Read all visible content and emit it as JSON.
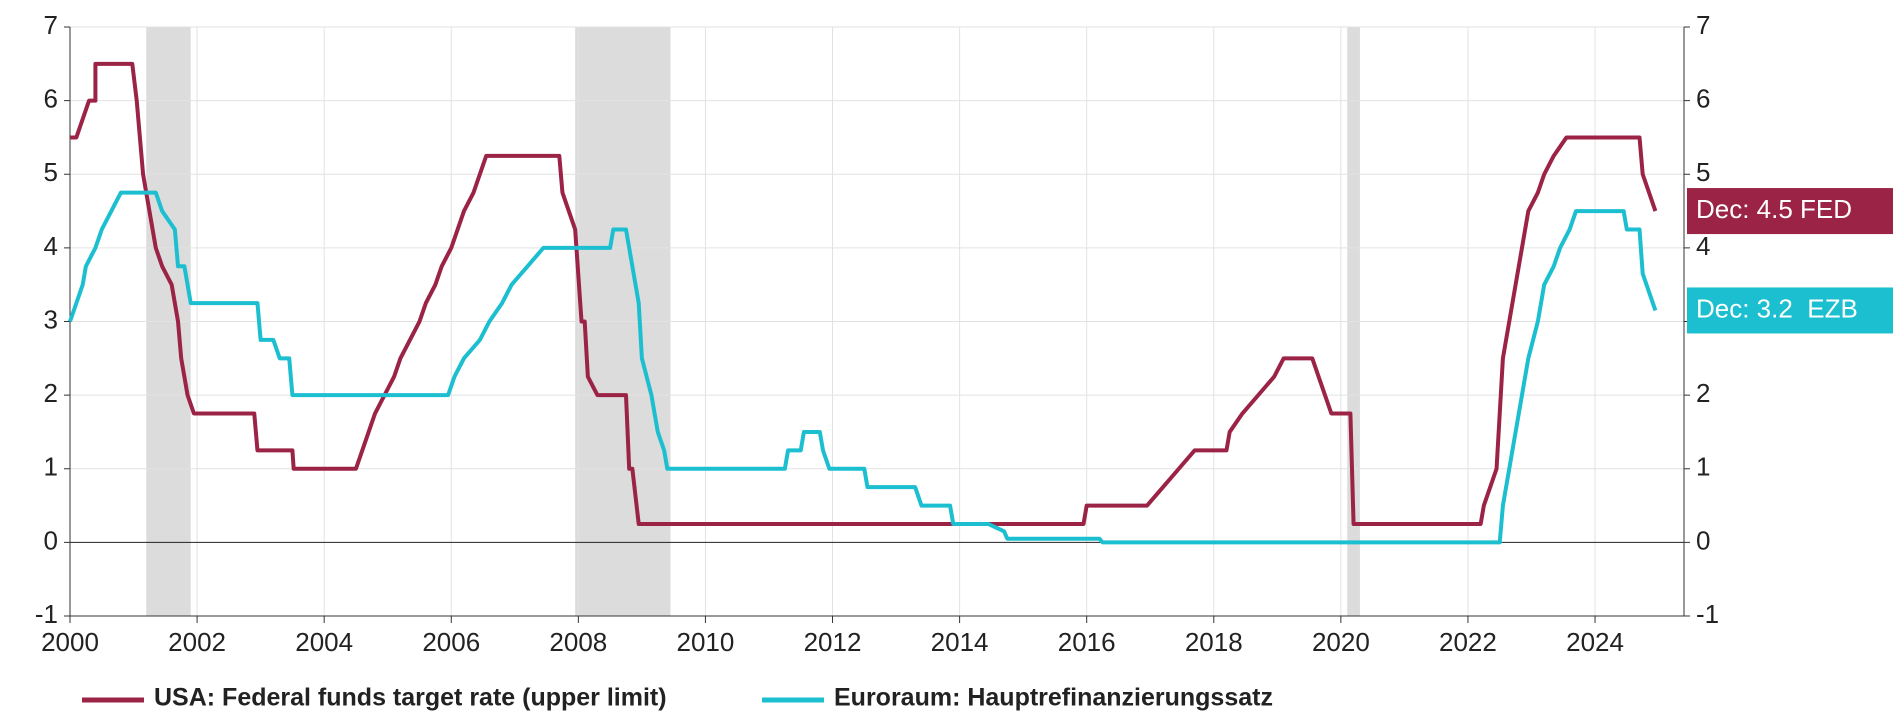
{
  "chart_data": {
    "type": "line",
    "xlim": [
      2000,
      2025.4
    ],
    "xticks": [
      2000,
      2002,
      2004,
      2006,
      2008,
      2010,
      2012,
      2014,
      2016,
      2018,
      2020,
      2022,
      2024
    ],
    "ylim": [
      -1,
      7
    ],
    "yticks": [
      -1,
      0,
      1,
      2,
      3,
      4,
      5,
      6,
      7
    ],
    "y2lim": [
      -1,
      7
    ],
    "y2ticks": [
      -1,
      0,
      1,
      2,
      3,
      4,
      5,
      6,
      7
    ],
    "grid": true,
    "shaded_periods": [
      [
        2001.2,
        2001.9
      ],
      [
        2007.95,
        2009.45
      ],
      [
        2020.1,
        2020.3
      ]
    ],
    "series": [
      {
        "name": "USA: Federal funds target rate (upper limit)",
        "color": "#9b2346",
        "end_label": "Dec: 4.5 FED",
        "x": [
          2000.0,
          2000.1,
          2000.2,
          2000.3,
          2000.4,
          2000.4,
          2000.98,
          2001.05,
          2001.1,
          2001.15,
          2001.25,
          2001.35,
          2001.45,
          2001.6,
          2001.7,
          2001.75,
          2001.85,
          2001.95,
          2002.9,
          2002.95,
          2003.5,
          2003.52,
          2004.5,
          2004.6,
          2004.7,
          2004.8,
          2004.95,
          2005.1,
          2005.2,
          2005.35,
          2005.5,
          2005.6,
          2005.75,
          2005.85,
          2006.0,
          2006.1,
          2006.2,
          2006.35,
          2006.45,
          2006.55,
          2007.7,
          2007.75,
          2007.85,
          2007.95,
          2008.05,
          2008.1,
          2008.15,
          2008.3,
          2008.75,
          2008.8,
          2008.85,
          2008.95,
          2015.95,
          2016.0,
          2016.95,
          2017.2,
          2017.45,
          2017.7,
          2018.2,
          2018.25,
          2018.45,
          2018.7,
          2018.95,
          2019.1,
          2019.55,
          2019.65,
          2019.75,
          2019.85,
          2020.15,
          2020.2,
          2022.2,
          2022.25,
          2022.45,
          2022.55,
          2022.7,
          2022.85,
          2022.95,
          2023.1,
          2023.2,
          2023.35,
          2023.55,
          2024.7,
          2024.75,
          2024.85,
          2024.95
        ],
        "values": [
          5.5,
          5.5,
          5.75,
          6.0,
          6.0,
          6.5,
          6.5,
          6.0,
          5.5,
          5.0,
          4.5,
          4.0,
          3.75,
          3.5,
          3.0,
          2.5,
          2.0,
          1.75,
          1.75,
          1.25,
          1.25,
          1.0,
          1.0,
          1.25,
          1.5,
          1.75,
          2.0,
          2.25,
          2.5,
          2.75,
          3.0,
          3.25,
          3.5,
          3.75,
          4.0,
          4.25,
          4.5,
          4.75,
          5.0,
          5.25,
          5.25,
          4.75,
          4.5,
          4.25,
          3.0,
          3.0,
          2.25,
          2.0,
          2.0,
          1.0,
          1.0,
          0.25,
          0.25,
          0.5,
          0.5,
          0.75,
          1.0,
          1.25,
          1.25,
          1.5,
          1.75,
          2.0,
          2.25,
          2.5,
          2.5,
          2.25,
          2.0,
          1.75,
          1.75,
          0.25,
          0.25,
          0.5,
          1.0,
          2.5,
          3.25,
          4.0,
          4.5,
          4.75,
          5.0,
          5.25,
          5.5,
          5.5,
          5.0,
          4.75,
          4.5
        ]
      },
      {
        "name": "Euroraum: Hauptrefinanzierungssatz",
        "color": "#1cbfcf",
        "end_label": "Dec: 3.2  EZB",
        "x": [
          2000.0,
          2000.1,
          2000.2,
          2000.25,
          2000.4,
          2000.5,
          2000.65,
          2000.8,
          2001.35,
          2001.45,
          2001.65,
          2001.7,
          2001.8,
          2001.9,
          2002.95,
          2003.0,
          2003.2,
          2003.3,
          2003.45,
          2003.5,
          2005.95,
          2006.05,
          2006.2,
          2006.45,
          2006.6,
          2006.8,
          2006.95,
          2007.2,
          2007.45,
          2008.5,
          2008.55,
          2008.75,
          2008.85,
          2008.95,
          2009.0,
          2009.15,
          2009.25,
          2009.35,
          2009.4,
          2011.25,
          2011.3,
          2011.5,
          2011.55,
          2011.8,
          2011.85,
          2011.95,
          2012.5,
          2012.55,
          2013.3,
          2013.4,
          2013.85,
          2013.9,
          2014.45,
          2014.7,
          2014.75,
          2016.2,
          2016.25,
          2022.5,
          2022.55,
          2022.7,
          2022.85,
          2022.95,
          2023.1,
          2023.2,
          2023.35,
          2023.45,
          2023.6,
          2023.7,
          2024.45,
          2024.5,
          2024.7,
          2024.75,
          2024.85,
          2024.95
        ],
        "values": [
          3.0,
          3.25,
          3.5,
          3.75,
          4.0,
          4.25,
          4.5,
          4.75,
          4.75,
          4.5,
          4.25,
          3.75,
          3.75,
          3.25,
          3.25,
          2.75,
          2.75,
          2.5,
          2.5,
          2.0,
          2.0,
          2.25,
          2.5,
          2.75,
          3.0,
          3.25,
          3.5,
          3.75,
          4.0,
          4.0,
          4.25,
          4.25,
          3.75,
          3.25,
          2.5,
          2.0,
          1.5,
          1.25,
          1.0,
          1.0,
          1.25,
          1.25,
          1.5,
          1.5,
          1.25,
          1.0,
          1.0,
          0.75,
          0.75,
          0.5,
          0.5,
          0.25,
          0.25,
          0.15,
          0.05,
          0.05,
          0.0,
          0.0,
          0.5,
          1.25,
          2.0,
          2.5,
          3.0,
          3.5,
          3.75,
          4.0,
          4.25,
          4.5,
          4.5,
          4.25,
          4.25,
          3.65,
          3.4,
          3.15
        ]
      }
    ]
  }
}
